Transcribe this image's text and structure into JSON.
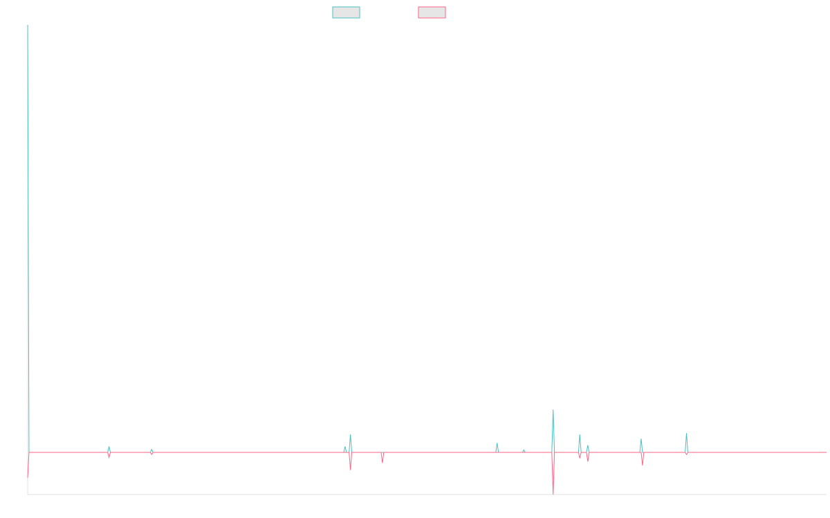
{
  "chart_data": {
    "type": "line",
    "title": "",
    "xlabel": "",
    "ylabel": "",
    "x_count": 600,
    "ylim": [
      -1.0,
      10.0
    ],
    "grid": false,
    "legend_position": "top",
    "colors": {
      "series_a_line": "#4bc0c0",
      "series_a_fill": "#e6e6e6",
      "series_b_line": "#ff6384",
      "series_b_fill": "#e6e6e6",
      "axis": "#e0e0e0"
    },
    "baseline": 0,
    "series": [
      {
        "name": "",
        "color_key": "a",
        "start": 10.0,
        "spikes": [
          {
            "x": 61,
            "y": 0.14
          },
          {
            "x": 93,
            "y": 0.07
          },
          {
            "x": 238,
            "y": 0.14
          },
          {
            "x": 242,
            "y": 0.42
          },
          {
            "x": 352,
            "y": 0.22
          },
          {
            "x": 372,
            "y": 0.06
          },
          {
            "x": 394,
            "y": 1.0
          },
          {
            "x": 414,
            "y": 0.42
          },
          {
            "x": 420,
            "y": 0.17
          },
          {
            "x": 460,
            "y": 0.32
          },
          {
            "x": 494,
            "y": 0.45
          }
        ]
      },
      {
        "name": "",
        "color_key": "b",
        "start": -0.6,
        "spikes": [
          {
            "x": 61,
            "y": -0.12
          },
          {
            "x": 93,
            "y": -0.05
          },
          {
            "x": 242,
            "y": -0.42
          },
          {
            "x": 266,
            "y": -0.25
          },
          {
            "x": 394,
            "y": -1.0
          },
          {
            "x": 414,
            "y": -0.14
          },
          {
            "x": 420,
            "y": -0.22
          },
          {
            "x": 461,
            "y": -0.31
          },
          {
            "x": 494,
            "y": -0.05
          }
        ]
      }
    ]
  }
}
